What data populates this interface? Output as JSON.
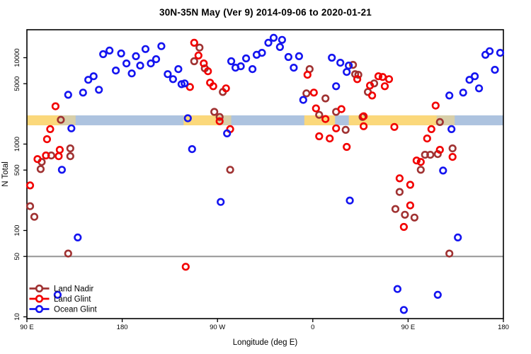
{
  "title": "30N-35N May (Ver 9)   2014-09-06 to 2020-01-21",
  "chart_data": {
    "type": "scatter",
    "title": "30N-35N May (Ver 9)   2014-09-06 to 2020-01-21",
    "xlabel": "Longitude (deg E)",
    "ylabel": "N Total",
    "x_axis": {
      "range": [
        90,
        540
      ],
      "ticks": [
        {
          "value": 90,
          "label": "90 E"
        },
        {
          "value": 180,
          "label": "180"
        },
        {
          "value": 270,
          "label": "90 W"
        },
        {
          "value": 360,
          "label": "0"
        },
        {
          "value": 450,
          "label": "90 E"
        },
        {
          "value": 540,
          "label": "180"
        }
      ]
    },
    "y_axis": {
      "scale": "log",
      "range": [
        10,
        22000
      ],
      "ticks": [
        {
          "value": 10,
          "label": "10"
        },
        {
          "value": 50,
          "label": "50"
        },
        {
          "value": 100,
          "label": "100"
        },
        {
          "value": 500,
          "label": "500"
        },
        {
          "value": 1000,
          "label": "1000"
        },
        {
          "value": 5000,
          "label": "5000"
        },
        {
          "value": 10000,
          "label": "10000"
        }
      ]
    },
    "reference_line": {
      "value": 50,
      "color": "#969696"
    },
    "latitude_band": {
      "value_range": [
        1650,
        2150
      ],
      "lon_range": [
        90,
        540
      ],
      "ocean_color": "#adc3df",
      "land_color": "#fbd87b",
      "land_segments": [
        {
          "lon": [
            90,
            121
          ],
          "mixed": false
        },
        {
          "lon": [
            121,
            136
          ],
          "mixed": true
        },
        {
          "lon": [
            238,
            271
          ],
          "mixed": false
        },
        {
          "lon": [
            271,
            283
          ],
          "mixed": true
        },
        {
          "lon": [
            352,
            381
          ],
          "mixed": false
        },
        {
          "lon": [
            394,
            477
          ],
          "mixed": false
        },
        {
          "lon": [
            477,
            494
          ],
          "mixed": true
        }
      ]
    },
    "legend": {
      "position": "bottom-left",
      "entries": [
        "Land Nadir",
        "Land Glint",
        "Ocean Glint"
      ]
    },
    "series": [
      {
        "name": "Land Nadir",
        "color": "#a03232",
        "points": [
          [
            122,
            1910
          ],
          [
            131,
            891
          ],
          [
            131,
            724
          ],
          [
            113,
            738
          ],
          [
            104,
            621
          ],
          [
            103,
            514
          ],
          [
            93,
            191
          ],
          [
            97,
            144
          ],
          [
            129,
            54
          ],
          [
            253,
            13100
          ],
          [
            248,
            9100
          ],
          [
            258,
            7520
          ],
          [
            275,
            4010
          ],
          [
            267,
            2360
          ],
          [
            272,
            2060
          ],
          [
            282,
            504
          ],
          [
            357,
            7380
          ],
          [
            354,
            3860
          ],
          [
            372,
            3380
          ],
          [
            366,
            2180
          ],
          [
            382,
            2360
          ],
          [
            391,
            1460
          ],
          [
            398,
            8260
          ],
          [
            400,
            6460
          ],
          [
            403,
            6340
          ],
          [
            418,
            5040
          ],
          [
            412,
            4010
          ],
          [
            407,
            2060
          ],
          [
            480,
            1800
          ],
          [
            466,
            752
          ],
          [
            471,
            752
          ],
          [
            478,
            766
          ],
          [
            462,
            504
          ],
          [
            492,
            891
          ],
          [
            442,
            279
          ],
          [
            438,
            177
          ],
          [
            447,
            152
          ],
          [
            456,
            141
          ],
          [
            489,
            54
          ]
        ]
      },
      {
        "name": "Land Glint",
        "color": "#f20000",
        "points": [
          [
            117,
            2740
          ],
          [
            112,
            1490
          ],
          [
            109,
            1140
          ],
          [
            121,
            859
          ],
          [
            120,
            724
          ],
          [
            108,
            738
          ],
          [
            100,
            670
          ],
          [
            93,
            332
          ],
          [
            240,
            38
          ],
          [
            244,
            4580
          ],
          [
            248,
            14900
          ],
          [
            252,
            10600
          ],
          [
            257,
            8590
          ],
          [
            261,
            6970
          ],
          [
            263,
            5140
          ],
          [
            266,
            4670
          ],
          [
            278,
            4420
          ],
          [
            272,
            1840
          ],
          [
            282,
            1490
          ],
          [
            355,
            6340
          ],
          [
            361,
            3940
          ],
          [
            363,
            2590
          ],
          [
            372,
            1950
          ],
          [
            387,
            2540
          ],
          [
            366,
            1230
          ],
          [
            376,
            1160
          ],
          [
            382,
            1520
          ],
          [
            392,
            927
          ],
          [
            408,
            2100
          ],
          [
            408,
            1610
          ],
          [
            402,
            5650
          ],
          [
            414,
            4760
          ],
          [
            422,
            6100
          ],
          [
            426,
            5980
          ],
          [
            432,
            5650
          ],
          [
            428,
            4670
          ],
          [
            416,
            3650
          ],
          [
            437,
            1580
          ],
          [
            442,
            401
          ],
          [
            452,
            338
          ],
          [
            452,
            195
          ],
          [
            446,
            110
          ],
          [
            458,
            646
          ],
          [
            462,
            621
          ],
          [
            468,
            1160
          ],
          [
            472,
            1490
          ],
          [
            476,
            2790
          ],
          [
            480,
            859
          ],
          [
            492,
            710
          ]
        ]
      },
      {
        "name": "Ocean Glint",
        "color": "#1414f0",
        "points": [
          [
            162,
            11000
          ],
          [
            168,
            12100
          ],
          [
            179,
            11200
          ],
          [
            184,
            8590
          ],
          [
            193,
            10400
          ],
          [
            202,
            12600
          ],
          [
            189,
            6580
          ],
          [
            197,
            8110
          ],
          [
            207,
            8590
          ],
          [
            212,
            9620
          ],
          [
            217,
            13600
          ],
          [
            174,
            7100
          ],
          [
            153,
            6100
          ],
          [
            148,
            5550
          ],
          [
            158,
            4250
          ],
          [
            143,
            3940
          ],
          [
            129,
            3720
          ],
          [
            223,
            6460
          ],
          [
            228,
            5650
          ],
          [
            233,
            7380
          ],
          [
            236,
            4940
          ],
          [
            239,
            5040
          ],
          [
            283,
            9100
          ],
          [
            287,
            7660
          ],
          [
            292,
            7960
          ],
          [
            297,
            9810
          ],
          [
            303,
            7380
          ],
          [
            307,
            10800
          ],
          [
            312,
            11400
          ],
          [
            318,
            14900
          ],
          [
            323,
            17000
          ],
          [
            329,
            13300
          ],
          [
            331,
            16100
          ],
          [
            337,
            10200
          ],
          [
            347,
            10400
          ],
          [
            342,
            7660
          ],
          [
            378,
            10000
          ],
          [
            386,
            8750
          ],
          [
            394,
            8110
          ],
          [
            392,
            6840
          ],
          [
            382,
            4670
          ],
          [
            351,
            3250
          ],
          [
            242,
            1990
          ],
          [
            132,
            1520
          ],
          [
            279,
            1330
          ],
          [
            246,
            875
          ],
          [
            273,
            214
          ],
          [
            123,
            504
          ],
          [
            138,
            83
          ],
          [
            119,
            18
          ],
          [
            483,
            494
          ],
          [
            395,
            222
          ],
          [
            491,
            1490
          ],
          [
            497,
            83
          ],
          [
            440,
            21
          ],
          [
            478,
            18
          ],
          [
            446,
            12
          ],
          [
            523,
            10800
          ],
          [
            527,
            11900
          ],
          [
            537,
            11400
          ],
          [
            532,
            7240
          ],
          [
            513,
            6100
          ],
          [
            508,
            5550
          ],
          [
            517,
            4420
          ],
          [
            502,
            3940
          ],
          [
            489,
            3650
          ]
        ]
      }
    ]
  }
}
